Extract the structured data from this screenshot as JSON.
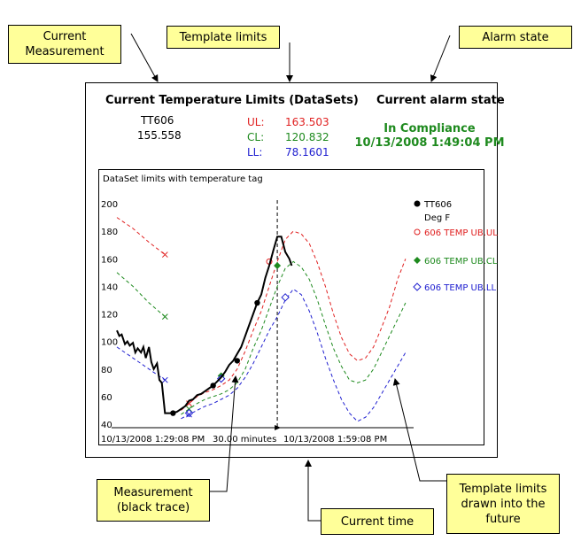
{
  "callouts": {
    "current_measurement": "Current\nMeasurement",
    "template_limits": "Template limits",
    "alarm_state": "Alarm state",
    "measurement": "Measurement\n(black trace)",
    "current_time": "Current time",
    "future": "Template limits\ndrawn into the\nfuture"
  },
  "panel": {
    "current_temp_title": "Current Temperature",
    "tag": "TT606",
    "value": "155.558",
    "limits_title": "Limits (DataSets)",
    "ul_label": "UL:",
    "ul_value": "163.503",
    "cl_label": "CL:",
    "cl_value": "120.832",
    "ll_label": "LL:",
    "ll_value": "78.1601",
    "alarm_title": "Current alarm state",
    "alarm_state": "In Compliance",
    "alarm_time": "10/13/2008 1:49:04 PM"
  },
  "colors": {
    "ul": "#e02020",
    "cl": "#1e8a1e",
    "ll": "#2020d0",
    "measurement": "#000000",
    "callout_bg": "#ffff99"
  },
  "chart_data": {
    "type": "line",
    "title": "DataSet limits with temperature tag",
    "ylim": [
      40,
      200
    ],
    "yticks": [
      40,
      60,
      80,
      100,
      120,
      140,
      160,
      180,
      200
    ],
    "xlim": [
      0,
      37
    ],
    "x_unit": "minutes after 10/13/2008 1:29:08 PM",
    "x_labels": {
      "start": "10/13/2008 1:29:08 PM",
      "span": "30.00 minutes",
      "end": "10/13/2008 1:59:08 PM"
    },
    "current_time_x": 20,
    "legend": [
      {
        "name": "TT606",
        "sub": "Deg F",
        "marker": "dot",
        "color": "#000000"
      },
      {
        "name": "606 TEMP UB.UL",
        "marker": "circle",
        "color": "#e02020"
      },
      {
        "name": "606 TEMP UB.CL",
        "marker": "diamond",
        "color": "#1e8a1e"
      },
      {
        "name": "606 TEMP UB.LL",
        "marker": "diamond-open",
        "color": "#2020d0"
      }
    ],
    "series": [
      {
        "name": "TT606",
        "style": "solid",
        "color": "#000000",
        "x": [
          0,
          0.3,
          0.6,
          1,
          1.3,
          1.6,
          2,
          2.3,
          2.6,
          3,
          3.3,
          3.6,
          4,
          4.3,
          4.6,
          5,
          5.3,
          5.6,
          6,
          6.5,
          7,
          7.5,
          8,
          8.5,
          9,
          9.5,
          10,
          10.5,
          11,
          11.5,
          12,
          12.5,
          13,
          13.5,
          14,
          14.5,
          15,
          15.5,
          16,
          16.5,
          17,
          17.5,
          18,
          18.5,
          19,
          19.5,
          20,
          20.5,
          21,
          21.5,
          21.8
        ],
        "y": [
          108,
          104,
          105,
          98,
          100,
          97,
          99,
          92,
          95,
          92,
          96,
          88,
          96,
          85,
          80,
          84,
          72,
          70,
          48,
          48,
          48,
          49,
          51,
          53,
          57,
          58,
          61,
          62,
          64,
          66,
          68,
          71,
          74,
          78,
          83,
          86,
          91,
          96,
          104,
          112,
          120,
          128,
          134,
          146,
          155,
          166,
          176,
          176,
          165,
          160,
          155
        ],
        "markers": [
          [
            7,
            48
          ],
          [
            12,
            68
          ],
          [
            15,
            86
          ],
          [
            17.5,
            128
          ]
        ]
      },
      {
        "name": "606 TEMP UB.UL",
        "style": "dashed",
        "color": "#e02020",
        "past": {
          "x": [
            0,
            2,
            4,
            6
          ],
          "y": [
            190,
            182,
            172,
            163
          ]
        },
        "main": {
          "x": [
            8,
            9,
            10,
            11,
            12,
            13,
            14,
            15,
            16,
            17,
            18,
            19,
            20,
            21,
            22,
            23,
            24,
            25,
            26,
            27,
            28,
            29,
            30,
            31,
            32,
            33,
            34,
            35,
            36
          ],
          "y": [
            50,
            55,
            60,
            63,
            65,
            68,
            72,
            80,
            93,
            108,
            122,
            140,
            158,
            174,
            180,
            178,
            171,
            157,
            140,
            120,
            103,
            91,
            86,
            88,
            96,
            110,
            125,
            145,
            160
          ]
        },
        "markers": [
          [
            6,
            163
          ],
          [
            19,
            158
          ]
        ]
      },
      {
        "name": "606 TEMP UB.CL",
        "style": "dashed",
        "color": "#1e8a1e",
        "past": {
          "x": [
            0,
            2,
            4,
            6
          ],
          "y": [
            150,
            140,
            128,
            118
          ]
        },
        "main": {
          "x": [
            8,
            9,
            10,
            11,
            12,
            13,
            14,
            15,
            16,
            17,
            18,
            19,
            20,
            21,
            22,
            23,
            24,
            25,
            26,
            27,
            28,
            29,
            30,
            31,
            32,
            33,
            34,
            35,
            36
          ],
          "y": [
            47,
            51,
            55,
            58,
            60,
            62,
            65,
            70,
            80,
            95,
            108,
            124,
            140,
            153,
            158,
            154,
            145,
            130,
            112,
            95,
            82,
            72,
            70,
            72,
            80,
            92,
            104,
            116,
            128
          ]
        },
        "markers": [
          [
            6,
            118
          ],
          [
            13,
            75
          ],
          [
            20,
            155
          ]
        ]
      },
      {
        "name": "606 TEMP UB.LL",
        "style": "dashed",
        "color": "#2020d0",
        "past": {
          "x": [
            0,
            2,
            4,
            6
          ],
          "y": [
            96,
            88,
            80,
            72
          ]
        },
        "main": {
          "x": [
            8,
            9,
            10,
            11,
            12,
            13,
            14,
            15,
            16,
            17,
            18,
            19,
            20,
            21,
            22,
            23,
            24,
            25,
            26,
            27,
            28,
            29,
            30,
            31,
            32,
            33,
            34,
            35,
            36
          ],
          "y": [
            44,
            47,
            50,
            53,
            55,
            58,
            61,
            66,
            74,
            84,
            96,
            108,
            118,
            130,
            138,
            134,
            122,
            106,
            88,
            72,
            58,
            48,
            42,
            45,
            52,
            62,
            72,
            82,
            92
          ]
        },
        "markers": [
          [
            6,
            72
          ],
          [
            9,
            48
          ],
          [
            13,
            73
          ],
          [
            21,
            132
          ]
        ]
      }
    ]
  }
}
